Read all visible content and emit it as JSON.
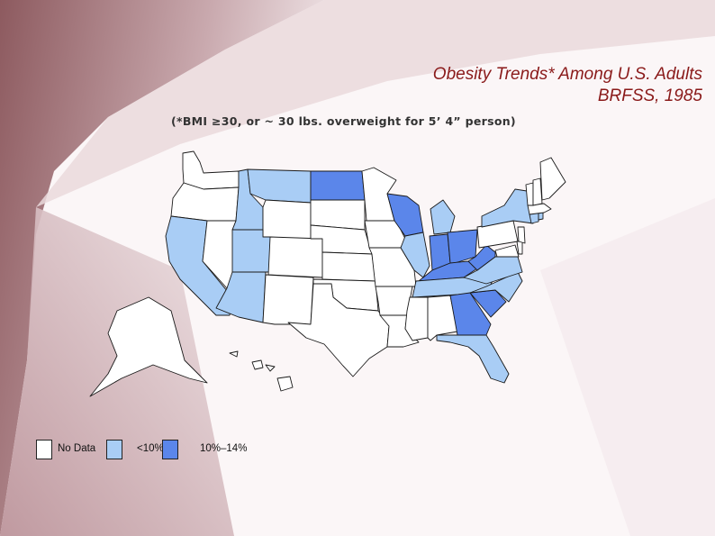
{
  "title_line1": "Obesity Trends* Among U.S. Adults",
  "title_line2": "BRFSS, 1985",
  "subtitle": "(*BMI ≥30, or ~ 30 lbs. overweight for 5’ 4” person)",
  "legend": [
    {
      "label": "No Data",
      "color": "#ffffff"
    },
    {
      "label": "<10%",
      "color": "#a9cdf5"
    },
    {
      "label": "10%–14%",
      "color": "#5b86ea"
    }
  ],
  "state_categories": {
    "no_data": [
      "WA",
      "OR",
      "NV",
      "WY",
      "CO",
      "NM",
      "TX",
      "NE",
      "KS",
      "OK",
      "AR",
      "LA",
      "MS",
      "AL",
      "IA",
      "MO",
      "PA",
      "NJ",
      "DE",
      "MD",
      "VT",
      "NH",
      "ME",
      "MA",
      "HI",
      "AK",
      "SD",
      "MN"
    ],
    "under_10": [
      "ID",
      "MT",
      "CA",
      "AZ",
      "UT",
      "IL",
      "MI",
      "NY",
      "VA",
      "NC",
      "TN",
      "FL",
      "CT",
      "RI"
    ],
    "10_to_14": [
      "ND",
      "WI",
      "OH",
      "IN",
      "KY",
      "WV",
      "GA",
      "SC"
    ]
  }
}
